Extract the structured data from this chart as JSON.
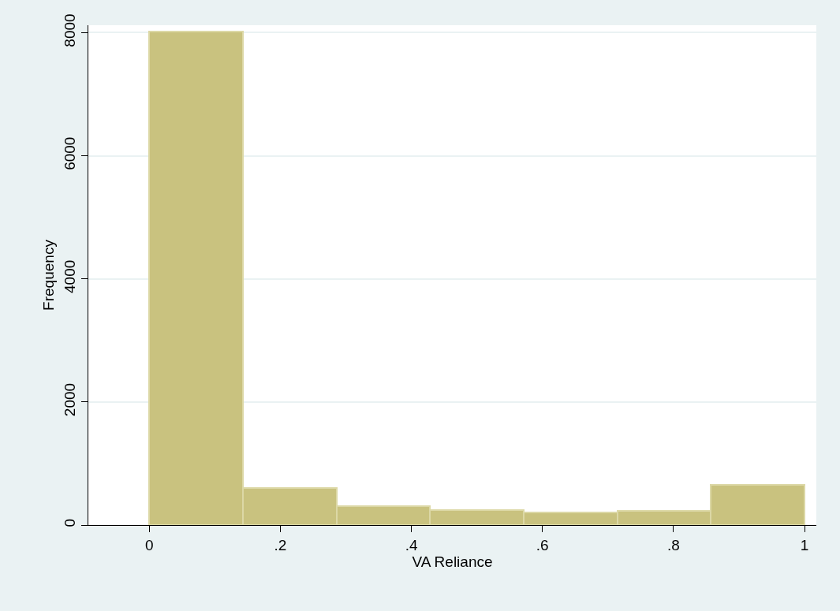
{
  "chart_data": {
    "type": "histogram",
    "xlabel": "VA Reliance",
    "ylabel": "Frequency",
    "bins": [
      0,
      0.142857,
      0.285714,
      0.428571,
      0.571429,
      0.714286,
      0.857143,
      1
    ],
    "values": [
      8020,
      600,
      310,
      240,
      200,
      230,
      650
    ],
    "color": "#c9c27f",
    "xlim": [
      -0.093,
      1.018
    ],
    "ylim": [
      0,
      8120
    ],
    "xticks": [
      0,
      {
        "value": 0.2,
        "label": ".2"
      },
      {
        "value": 0.4,
        "label": ".4"
      },
      {
        "value": 0.6,
        "label": ".6"
      },
      {
        "value": 0.8,
        "label": ".8"
      },
      1
    ],
    "yticks": [
      0,
      2000,
      4000,
      6000,
      8000
    ],
    "grid": "y"
  }
}
